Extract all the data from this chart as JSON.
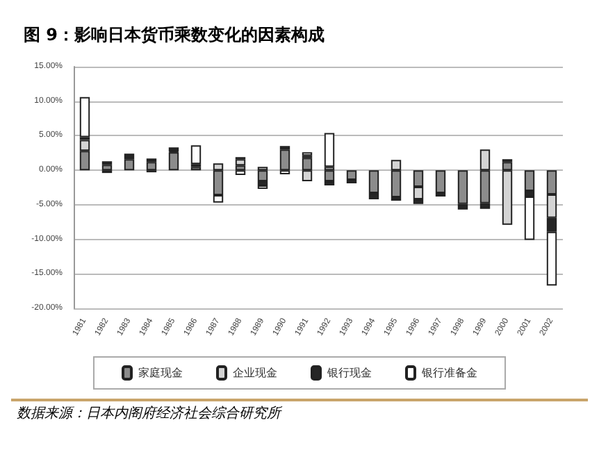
{
  "chart_data": {
    "type": "bar",
    "stacked": true,
    "title": "图 9：影响日本货币乘数变化的因素构成",
    "annotations": [
      "数据来源：日本内阁府经济社会综合研究所"
    ],
    "categories": [
      "1981",
      "1982",
      "1983",
      "1984",
      "1985",
      "1986",
      "1987",
      "1988",
      "1989",
      "1990",
      "1991",
      "1992",
      "1993",
      "1994",
      "1995",
      "1996",
      "1997",
      "1998",
      "1999",
      "2000",
      "2001",
      "2002"
    ],
    "series": [
      {
        "name": "家庭现金",
        "color": "#8c8c8c",
        "values": [
          2.8,
          0.8,
          1.6,
          1.2,
          2.6,
          0.5,
          -3.6,
          0.7,
          -1.6,
          3.0,
          1.8,
          -1.6,
          -1.4,
          -3.3,
          -3.9,
          -2.4,
          -3.3,
          -4.9,
          -4.8,
          1.2,
          -3.0,
          -3.5
        ]
      },
      {
        "name": "企业现金",
        "color": "#d4d4d4",
        "values": [
          1.6,
          -0.4,
          null,
          -0.3,
          0.1,
          null,
          1.0,
          0.9,
          0.5,
          null,
          -1.6,
          0.5,
          null,
          null,
          1.5,
          -1.8,
          null,
          null,
          3.0,
          -7.9,
          null,
          -3.4
        ]
      },
      {
        "name": "银行现金",
        "color": "#262626",
        "values": [
          0.4,
          0.5,
          0.8,
          0.5,
          0.6,
          0.4,
          null,
          0.3,
          -0.6,
          0.5,
          0.3,
          -0.6,
          -0.5,
          -0.9,
          -0.5,
          -0.7,
          -0.5,
          -0.8,
          -0.8,
          0.4,
          -0.8,
          -2.0
        ]
      },
      {
        "name": "银行准备金",
        "color": "#ffffff",
        "values": [
          5.8,
          null,
          null,
          null,
          null,
          2.7,
          -1.1,
          -0.7,
          -0.5,
          -0.6,
          0.5,
          4.9,
          null,
          null,
          null,
          null,
          null,
          null,
          null,
          null,
          -6.3,
          -7.8
        ]
      }
    ],
    "ylim": [
      -20,
      15
    ],
    "yticks": [
      {
        "value": -20,
        "label": "-20.00%"
      },
      {
        "value": -15,
        "label": "-15.00%"
      },
      {
        "value": -10,
        "label": "-10.00%"
      },
      {
        "value": -5,
        "label": "-5.00%"
      },
      {
        "value": 0,
        "label": "0.00%"
      },
      {
        "value": 5,
        "label": "5.00%"
      },
      {
        "value": 10,
        "label": "10.00%"
      },
      {
        "value": 15,
        "label": "15.00%"
      }
    ],
    "grid": "y",
    "legend": "bottom"
  }
}
